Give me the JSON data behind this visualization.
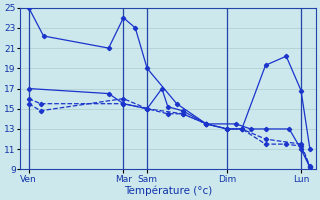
{
  "xlabel": "Température (°c)",
  "ylim": [
    9,
    25
  ],
  "yticks": [
    9,
    11,
    13,
    15,
    17,
    19,
    21,
    23,
    25
  ],
  "bg_color": "#cce8ec",
  "grid_color": "#aacccc",
  "line_color": "#1a34cc",
  "xlim": [
    0,
    10
  ],
  "x_tick_positions": [
    0.3,
    3.5,
    4.3,
    7.0,
    9.5
  ],
  "x_tick_labels": [
    "Ven",
    "Mar",
    "Sam",
    "Dim",
    "Lun"
  ],
  "series": [
    {
      "x": [
        0.3,
        0.8,
        3.0,
        3.5,
        3.9,
        4.3,
        5.3,
        6.3,
        7.3,
        7.8,
        8.3,
        9.1,
        9.5,
        9.8
      ],
      "y": [
        25.0,
        22.2,
        21.0,
        24.0,
        23.0,
        19.0,
        15.5,
        13.5,
        13.5,
        13.0,
        13.0,
        13.0,
        11.0,
        9.2
      ],
      "style": "solid"
    },
    {
      "x": [
        0.3,
        3.0,
        3.5,
        4.3,
        4.8,
        5.0,
        5.5,
        6.3,
        7.0,
        7.5,
        8.3,
        9.0,
        9.5,
        9.8
      ],
      "y": [
        17.0,
        16.5,
        15.5,
        15.0,
        17.0,
        15.2,
        14.8,
        13.5,
        13.0,
        13.0,
        19.3,
        20.2,
        16.8,
        11.0
      ],
      "style": "solid"
    },
    {
      "x": [
        0.3,
        0.7,
        3.5,
        4.3,
        5.0,
        5.5,
        6.3,
        7.0,
        7.5,
        8.3,
        9.5,
        9.8
      ],
      "y": [
        15.5,
        14.8,
        16.0,
        15.0,
        14.5,
        14.5,
        13.5,
        13.0,
        13.0,
        12.0,
        11.5,
        9.3
      ],
      "style": "dashed"
    },
    {
      "x": [
        0.3,
        0.7,
        3.5,
        4.3,
        5.5,
        6.3,
        7.0,
        7.5,
        8.3,
        9.0,
        9.5,
        9.8
      ],
      "y": [
        16.0,
        15.5,
        15.5,
        15.0,
        14.5,
        13.5,
        13.0,
        13.0,
        11.5,
        11.5,
        11.3,
        9.2
      ],
      "style": "dashed"
    }
  ],
  "vlines": [
    0.3,
    3.5,
    4.3,
    7.0,
    9.5
  ]
}
